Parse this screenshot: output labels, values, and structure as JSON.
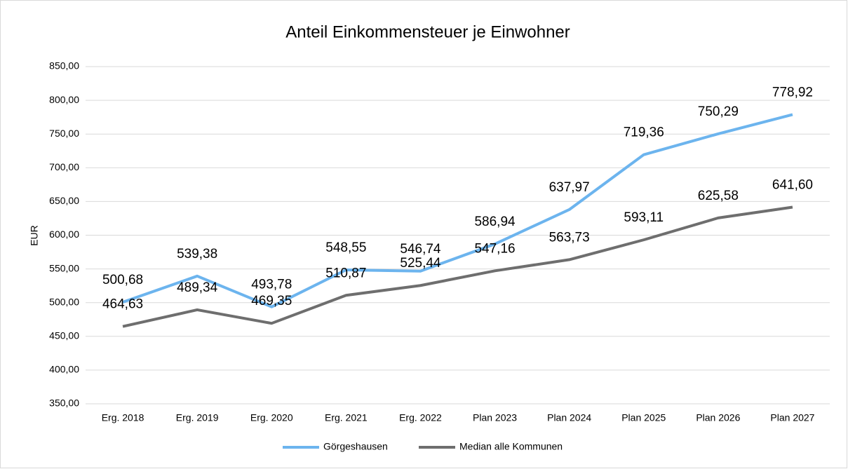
{
  "chart_data": {
    "type": "line",
    "title": "Anteil Einkommensteuer je Einwohner",
    "y_label": "EUR",
    "categories": [
      "Erg. 2018",
      "Erg. 2019",
      "Erg. 2020",
      "Erg. 2021",
      "Erg. 2022",
      "Plan 2023",
      "Plan 2024",
      "Plan 2025",
      "Plan 2026",
      "Plan 2027"
    ],
    "series": [
      {
        "name": "Görgeshausen",
        "color": "#6cb4ee",
        "values": [
          500.68,
          539.38,
          493.78,
          548.55,
          546.74,
          586.94,
          637.97,
          719.36,
          750.29,
          778.92
        ],
        "value_labels": [
          "500,68",
          "539,38",
          "493,78",
          "548,55",
          "546,74",
          "586,94",
          "637,97",
          "719,36",
          "750,29",
          "778,92"
        ]
      },
      {
        "name": "Median alle Kommunen",
        "color": "#6e6e6e",
        "values": [
          464.63,
          489.34,
          469.35,
          510.87,
          525.44,
          547.16,
          563.73,
          593.11,
          625.58,
          641.6
        ],
        "value_labels": [
          "464,63",
          "489,34",
          "469,35",
          "510,87",
          "525,44",
          "547,16",
          "563,73",
          "593,11",
          "625,58",
          "641,60"
        ]
      }
    ],
    "ylim": [
      350,
      850
    ],
    "yticks": [
      {
        "value": 350,
        "label": "350,00"
      },
      {
        "value": 400,
        "label": "400,00"
      },
      {
        "value": 450,
        "label": "450,00"
      },
      {
        "value": 500,
        "label": "500,00"
      },
      {
        "value": 550,
        "label": "550,00"
      },
      {
        "value": 600,
        "label": "600,00"
      },
      {
        "value": 650,
        "label": "650,00"
      },
      {
        "value": 700,
        "label": "700,00"
      },
      {
        "value": 750,
        "label": "750,00"
      },
      {
        "value": 800,
        "label": "800,00"
      },
      {
        "value": 850,
        "label": "850,00"
      }
    ],
    "grid": true,
    "legend": "bottom"
  }
}
